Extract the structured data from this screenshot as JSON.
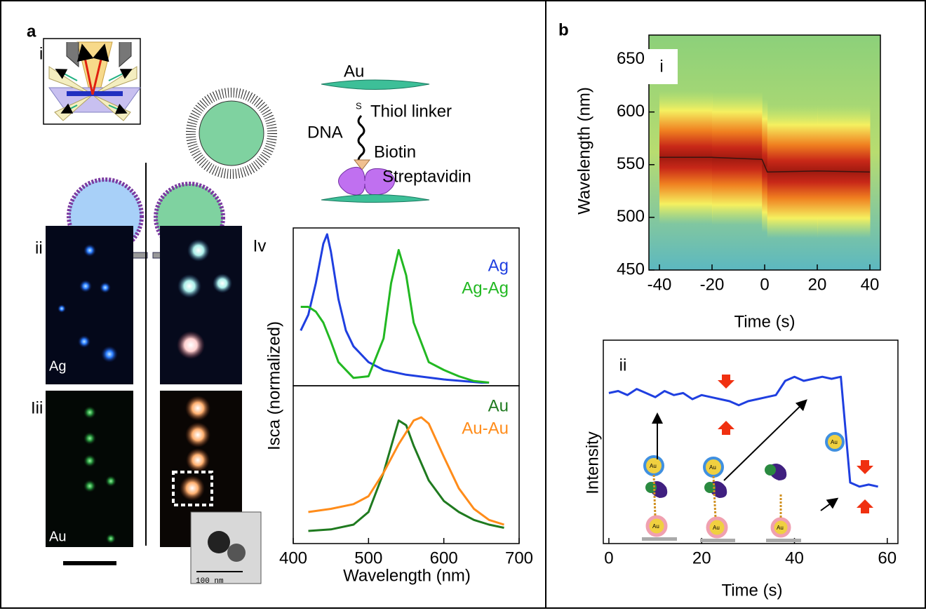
{
  "figure": {
    "panel_a": "a",
    "panel_a_i": "i",
    "panel_a_ii": "ii",
    "panel_a_iii": "Iii",
    "schematic": {
      "top_particle": "Au",
      "sulfur": "S",
      "thiol": "Thiol linker",
      "dna": "DNA",
      "biotin": "Biotin",
      "streptavidin": "Streptavidin"
    },
    "image_labels": [
      "Ag",
      "Au"
    ],
    "tem_scale": "100 nm",
    "panel_b": "b",
    "cartoon_labels": [
      "Au",
      "Au",
      "Au",
      "Au",
      "Au",
      "Au"
    ]
  },
  "chart_data": [
    {
      "type": "line",
      "panel_label": "Iv",
      "ylabel": "Isca (normalized)",
      "xlim": [
        400,
        700
      ],
      "ylim": [
        0,
        1
      ],
      "series": [
        {
          "name": "Ag",
          "color": "#1f3fe0",
          "x": [
            410,
            420,
            430,
            440,
            445,
            450,
            460,
            470,
            480,
            500,
            520,
            550,
            600,
            650,
            660
          ],
          "values": [
            0.35,
            0.45,
            0.65,
            0.9,
            0.96,
            0.85,
            0.55,
            0.35,
            0.25,
            0.15,
            0.1,
            0.07,
            0.04,
            0.02,
            0.02
          ]
        },
        {
          "name": "Ag-Ag",
          "color": "#22b822",
          "x": [
            410,
            420,
            430,
            440,
            450,
            460,
            480,
            500,
            520,
            530,
            540,
            550,
            560,
            580,
            600,
            620,
            640,
            660
          ],
          "values": [
            0.5,
            0.5,
            0.47,
            0.4,
            0.28,
            0.15,
            0.05,
            0.06,
            0.3,
            0.65,
            0.86,
            0.7,
            0.4,
            0.15,
            0.1,
            0.06,
            0.03,
            0.02
          ]
        }
      ]
    },
    {
      "type": "line",
      "xlabel": "Wavelength (nm)",
      "xlim": [
        400,
        700
      ],
      "xticks": [
        400,
        500,
        600,
        700
      ],
      "ylim": [
        0,
        1
      ],
      "series": [
        {
          "name": "Au",
          "color": "#1f7a1f",
          "x": [
            420,
            450,
            480,
            500,
            520,
            540,
            550,
            560,
            580,
            600,
            620,
            640,
            660,
            680
          ],
          "values": [
            0.08,
            0.09,
            0.12,
            0.2,
            0.45,
            0.78,
            0.75,
            0.62,
            0.4,
            0.27,
            0.2,
            0.15,
            0.12,
            0.1
          ]
        },
        {
          "name": "Au-Au",
          "color": "#ff8c1a",
          "x": [
            420,
            450,
            480,
            500,
            520,
            540,
            560,
            570,
            580,
            600,
            620,
            640,
            660,
            680
          ],
          "values": [
            0.2,
            0.22,
            0.25,
            0.3,
            0.45,
            0.63,
            0.78,
            0.8,
            0.76,
            0.55,
            0.35,
            0.22,
            0.15,
            0.12
          ]
        }
      ]
    },
    {
      "type": "line",
      "panel_label": "i",
      "xlabel": "Time (s)",
      "ylabel": "Wavelength (nm)",
      "xlim": [
        -44,
        44
      ],
      "xticks": [
        -40,
        -20,
        0,
        20,
        40
      ],
      "ylim": [
        450,
        673
      ],
      "yticks": [
        450,
        500,
        550,
        600,
        650
      ],
      "series": [
        {
          "color": "#3a1410",
          "x": [
            -40,
            -20,
            -1,
            1,
            20,
            40
          ],
          "values": [
            557,
            557,
            555,
            543,
            544,
            543
          ]
        }
      ]
    },
    {
      "type": "line",
      "panel_label": "ii",
      "xlabel": "Time (s)",
      "ylabel": "Intensity",
      "xlim": [
        -1.2,
        62.3
      ],
      "xticks": [
        0,
        20,
        40,
        60
      ],
      "ylim": [
        0,
        1
      ],
      "series": [
        {
          "color": "#1f3fe0",
          "x": [
            0,
            2,
            4,
            6,
            8,
            10,
            12,
            14,
            16,
            18,
            20,
            22,
            24,
            26,
            28,
            30,
            32,
            34,
            36,
            38,
            40,
            42,
            44,
            46,
            48,
            50,
            52,
            54,
            56,
            58
          ],
          "values": [
            0.74,
            0.75,
            0.73,
            0.76,
            0.74,
            0.72,
            0.75,
            0.73,
            0.74,
            0.71,
            0.73,
            0.72,
            0.71,
            0.7,
            0.68,
            0.7,
            0.71,
            0.72,
            0.73,
            0.8,
            0.82,
            0.8,
            0.81,
            0.82,
            0.81,
            0.82,
            0.3,
            0.28,
            0.29,
            0.28
          ]
        }
      ]
    }
  ]
}
